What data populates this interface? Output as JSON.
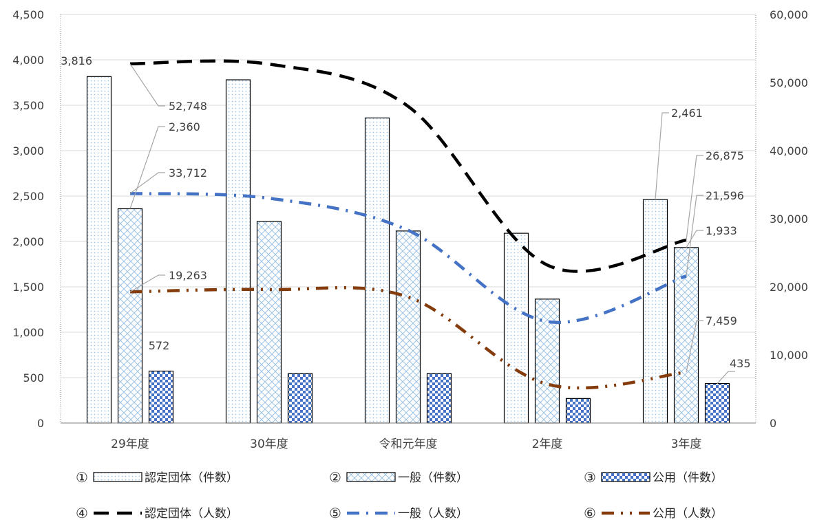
{
  "chart_data": {
    "type": "bar",
    "categories": [
      "29年度",
      "30年度",
      "令和元年度",
      "2年度",
      "3年度"
    ],
    "ylim_left": [
      0,
      4500
    ],
    "yticks_left": [
      "0",
      "500",
      "1,000",
      "1,500",
      "2,000",
      "2,500",
      "3,000",
      "3,500",
      "4,000",
      "4,500"
    ],
    "ylim_right": [
      0,
      60000
    ],
    "yticks_right": [
      "0",
      "10,000",
      "20,000",
      "30,000",
      "40,000",
      "50,000",
      "60,000"
    ],
    "grid": true,
    "legend_position": "bottom",
    "bar_series": [
      {
        "marker": "①",
        "name": "認定団体（件数）",
        "values": [
          3816,
          3780,
          3360,
          2090,
          2461
        ],
        "pattern": "dots",
        "color": "#9dc3e6"
      },
      {
        "marker": "②",
        "name": "一般（件数）",
        "values": [
          2360,
          2220,
          2115,
          1365,
          1933
        ],
        "pattern": "cross",
        "color": "#9dc3e6"
      },
      {
        "marker": "③",
        "name": "公用（件数）",
        "values": [
          572,
          545,
          545,
          270,
          435
        ],
        "pattern": "check",
        "color": "#4472c4"
      }
    ],
    "line_series": [
      {
        "marker": "④",
        "name": "認定団体（人数）",
        "values": [
          52748,
          52700,
          46500,
          23200,
          26875
        ],
        "color": "#000000",
        "dash": "22,12"
      },
      {
        "marker": "⑤",
        "name": "一般（人数）",
        "values": [
          33712,
          33000,
          28300,
          14900,
          21596
        ],
        "color": "#4472c4",
        "dash": "18,10,3,10"
      },
      {
        "marker": "⑥",
        "name": "公用（人数）",
        "values": [
          19263,
          19600,
          18500,
          5700,
          7459
        ],
        "color": "#843c0c",
        "dash": "18,10,3,10,3,10"
      }
    ],
    "data_labels": [
      {
        "series": 0,
        "index": 0,
        "text": "3,816"
      },
      {
        "series": 1,
        "index": 0,
        "text": "2,360"
      },
      {
        "series": 2,
        "index": 0,
        "text": "572"
      },
      {
        "series": 3,
        "index": 0,
        "text": "52,748"
      },
      {
        "series": 4,
        "index": 0,
        "text": "33,712"
      },
      {
        "series": 5,
        "index": 0,
        "text": "19,263"
      },
      {
        "series": 0,
        "index": 4,
        "text": "2,461"
      },
      {
        "series": 1,
        "index": 4,
        "text": "1,933"
      },
      {
        "series": 2,
        "index": 4,
        "text": "435"
      },
      {
        "series": 3,
        "index": 4,
        "text": "26,875"
      },
      {
        "series": 4,
        "index": 4,
        "text": "21,596"
      },
      {
        "series": 5,
        "index": 4,
        "text": "7,459"
      }
    ]
  }
}
